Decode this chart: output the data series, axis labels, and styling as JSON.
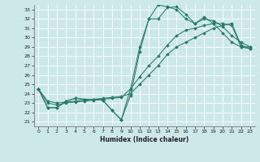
{
  "xlabel": "Humidex (Indice chaleur)",
  "xlim": [
    -0.5,
    23.5
  ],
  "ylim": [
    20.5,
    33.5
  ],
  "xticks": [
    0,
    1,
    2,
    3,
    4,
    5,
    6,
    7,
    8,
    9,
    10,
    11,
    12,
    13,
    14,
    15,
    16,
    17,
    18,
    19,
    20,
    21,
    22,
    23
  ],
  "yticks": [
    21,
    22,
    23,
    24,
    25,
    26,
    27,
    28,
    29,
    30,
    31,
    32,
    33
  ],
  "line_color": "#2a7a6a",
  "bg_color": "#cde8e8",
  "grid_color": "#b0d8d8",
  "lines": [
    {
      "x": [
        0,
        1,
        2,
        3,
        4,
        5,
        6,
        7,
        8,
        9,
        10,
        11,
        12,
        13,
        14,
        15,
        16,
        17,
        18,
        19,
        20,
        21,
        22,
        23
      ],
      "y": [
        24.5,
        22.5,
        22.5,
        23.2,
        23.5,
        23.4,
        23.4,
        23.3,
        22.2,
        21.2,
        23.8,
        28.5,
        32.0,
        32.0,
        33.2,
        33.3,
        32.5,
        31.5,
        32.2,
        31.5,
        30.5,
        29.5,
        29.0,
        28.8
      ]
    },
    {
      "x": [
        0,
        1,
        2,
        3,
        4,
        5,
        6,
        7,
        8,
        9,
        10,
        11,
        12,
        13,
        14,
        15,
        16,
        17,
        18,
        19,
        20,
        21,
        22,
        23
      ],
      "y": [
        24.5,
        22.5,
        22.5,
        23.2,
        23.5,
        23.4,
        23.4,
        23.3,
        22.2,
        21.2,
        24.5,
        29.0,
        32.0,
        33.5,
        33.3,
        33.0,
        32.0,
        31.5,
        32.0,
        31.8,
        31.2,
        30.2,
        29.5,
        29.0
      ]
    },
    {
      "x": [
        0,
        1,
        2,
        3,
        4,
        5,
        6,
        7,
        8,
        9,
        10,
        11,
        12,
        13,
        14,
        15,
        16,
        17,
        18,
        19,
        20,
        21,
        22,
        23
      ],
      "y": [
        24.5,
        23.2,
        23.0,
        23.1,
        23.2,
        23.3,
        23.4,
        23.5,
        23.6,
        23.7,
        24.0,
        25.0,
        26.0,
        27.0,
        28.2,
        29.0,
        29.5,
        30.0,
        30.5,
        31.0,
        31.3,
        31.5,
        29.2,
        28.8
      ]
    },
    {
      "x": [
        0,
        1,
        2,
        3,
        4,
        5,
        6,
        7,
        8,
        9,
        10,
        11,
        12,
        13,
        14,
        15,
        16,
        17,
        18,
        19,
        20,
        21,
        22,
        23
      ],
      "y": [
        24.5,
        23.0,
        22.8,
        23.0,
        23.1,
        23.2,
        23.3,
        23.4,
        23.5,
        23.6,
        24.5,
        25.8,
        27.0,
        28.0,
        29.2,
        30.2,
        30.8,
        31.0,
        31.3,
        31.5,
        31.5,
        31.3,
        29.0,
        29.0
      ]
    }
  ]
}
